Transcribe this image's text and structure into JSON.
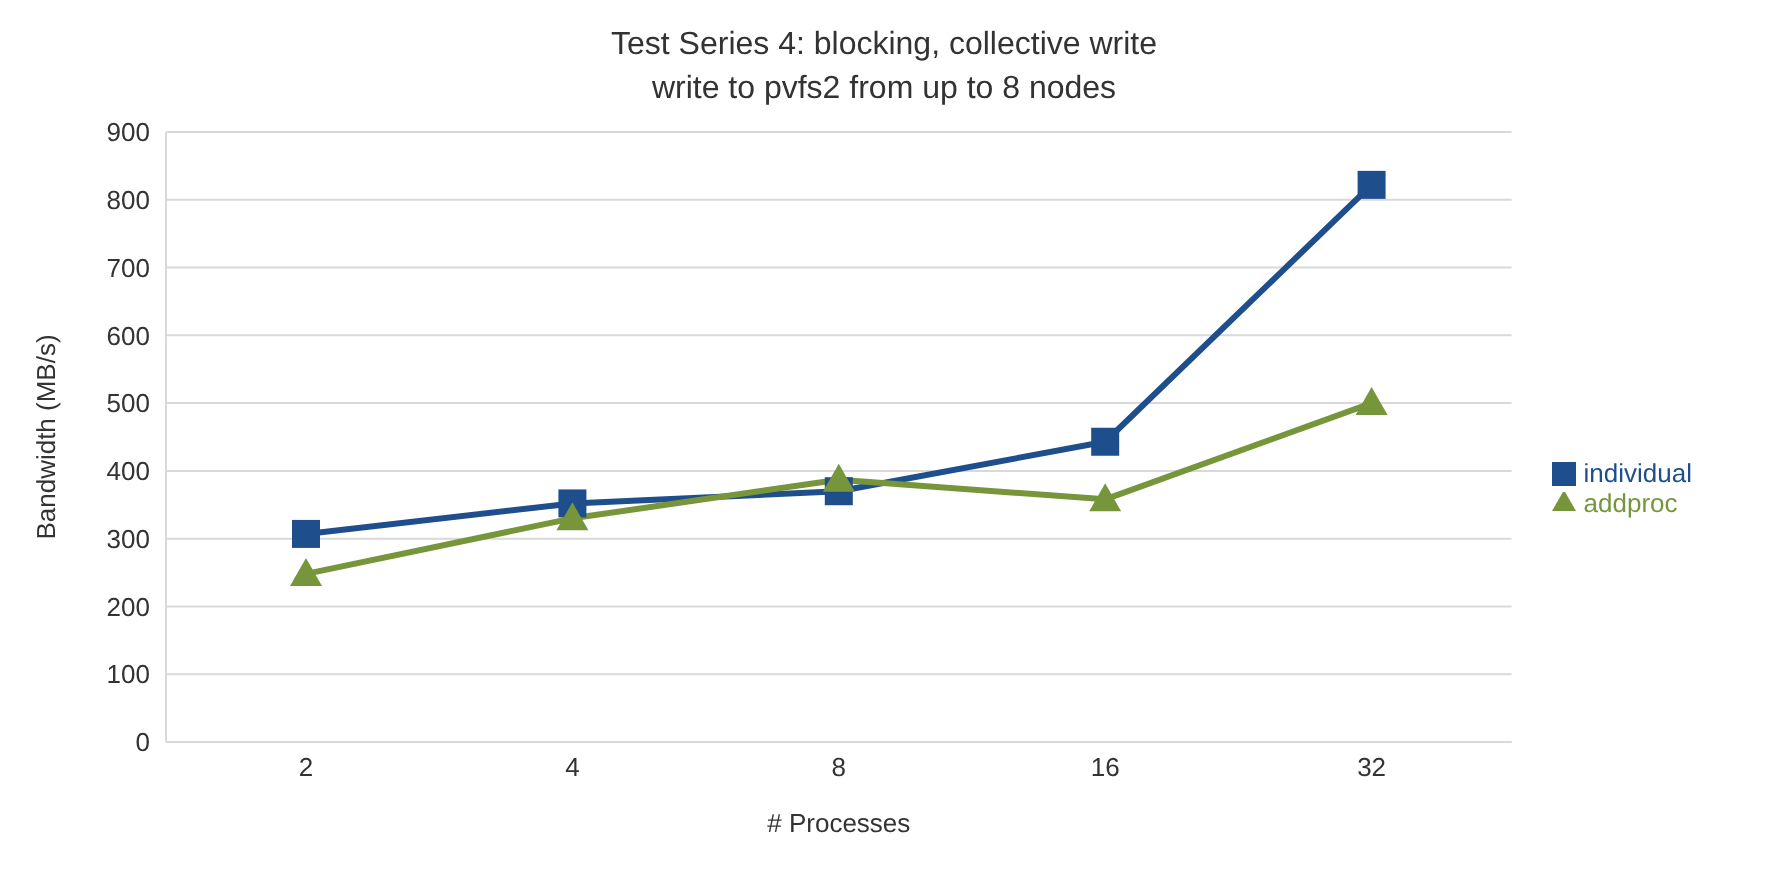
{
  "chart_data": {
    "type": "line",
    "title": "Test Series 4: blocking, collective write\nwrite to pvfs2 from up to 8 nodes",
    "xlabel": "# Processes",
    "ylabel": "Bandwidth (MB/s)",
    "categories": [
      "2",
      "4",
      "8",
      "16",
      "32"
    ],
    "series": [
      {
        "name": "individual",
        "color": "#1f4e8c",
        "marker": "square",
        "values": [
          307,
          352,
          370,
          443,
          822
        ]
      },
      {
        "name": "addproc",
        "color": "#77963c",
        "marker": "triangle",
        "values": [
          248,
          330,
          387,
          358,
          500
        ]
      }
    ],
    "ylim": [
      0,
      900
    ],
    "yticks": [
      0,
      100,
      200,
      300,
      400,
      500,
      600,
      700,
      800,
      900
    ],
    "grid": "y",
    "legend": "right",
    "line_style": "solid"
  }
}
